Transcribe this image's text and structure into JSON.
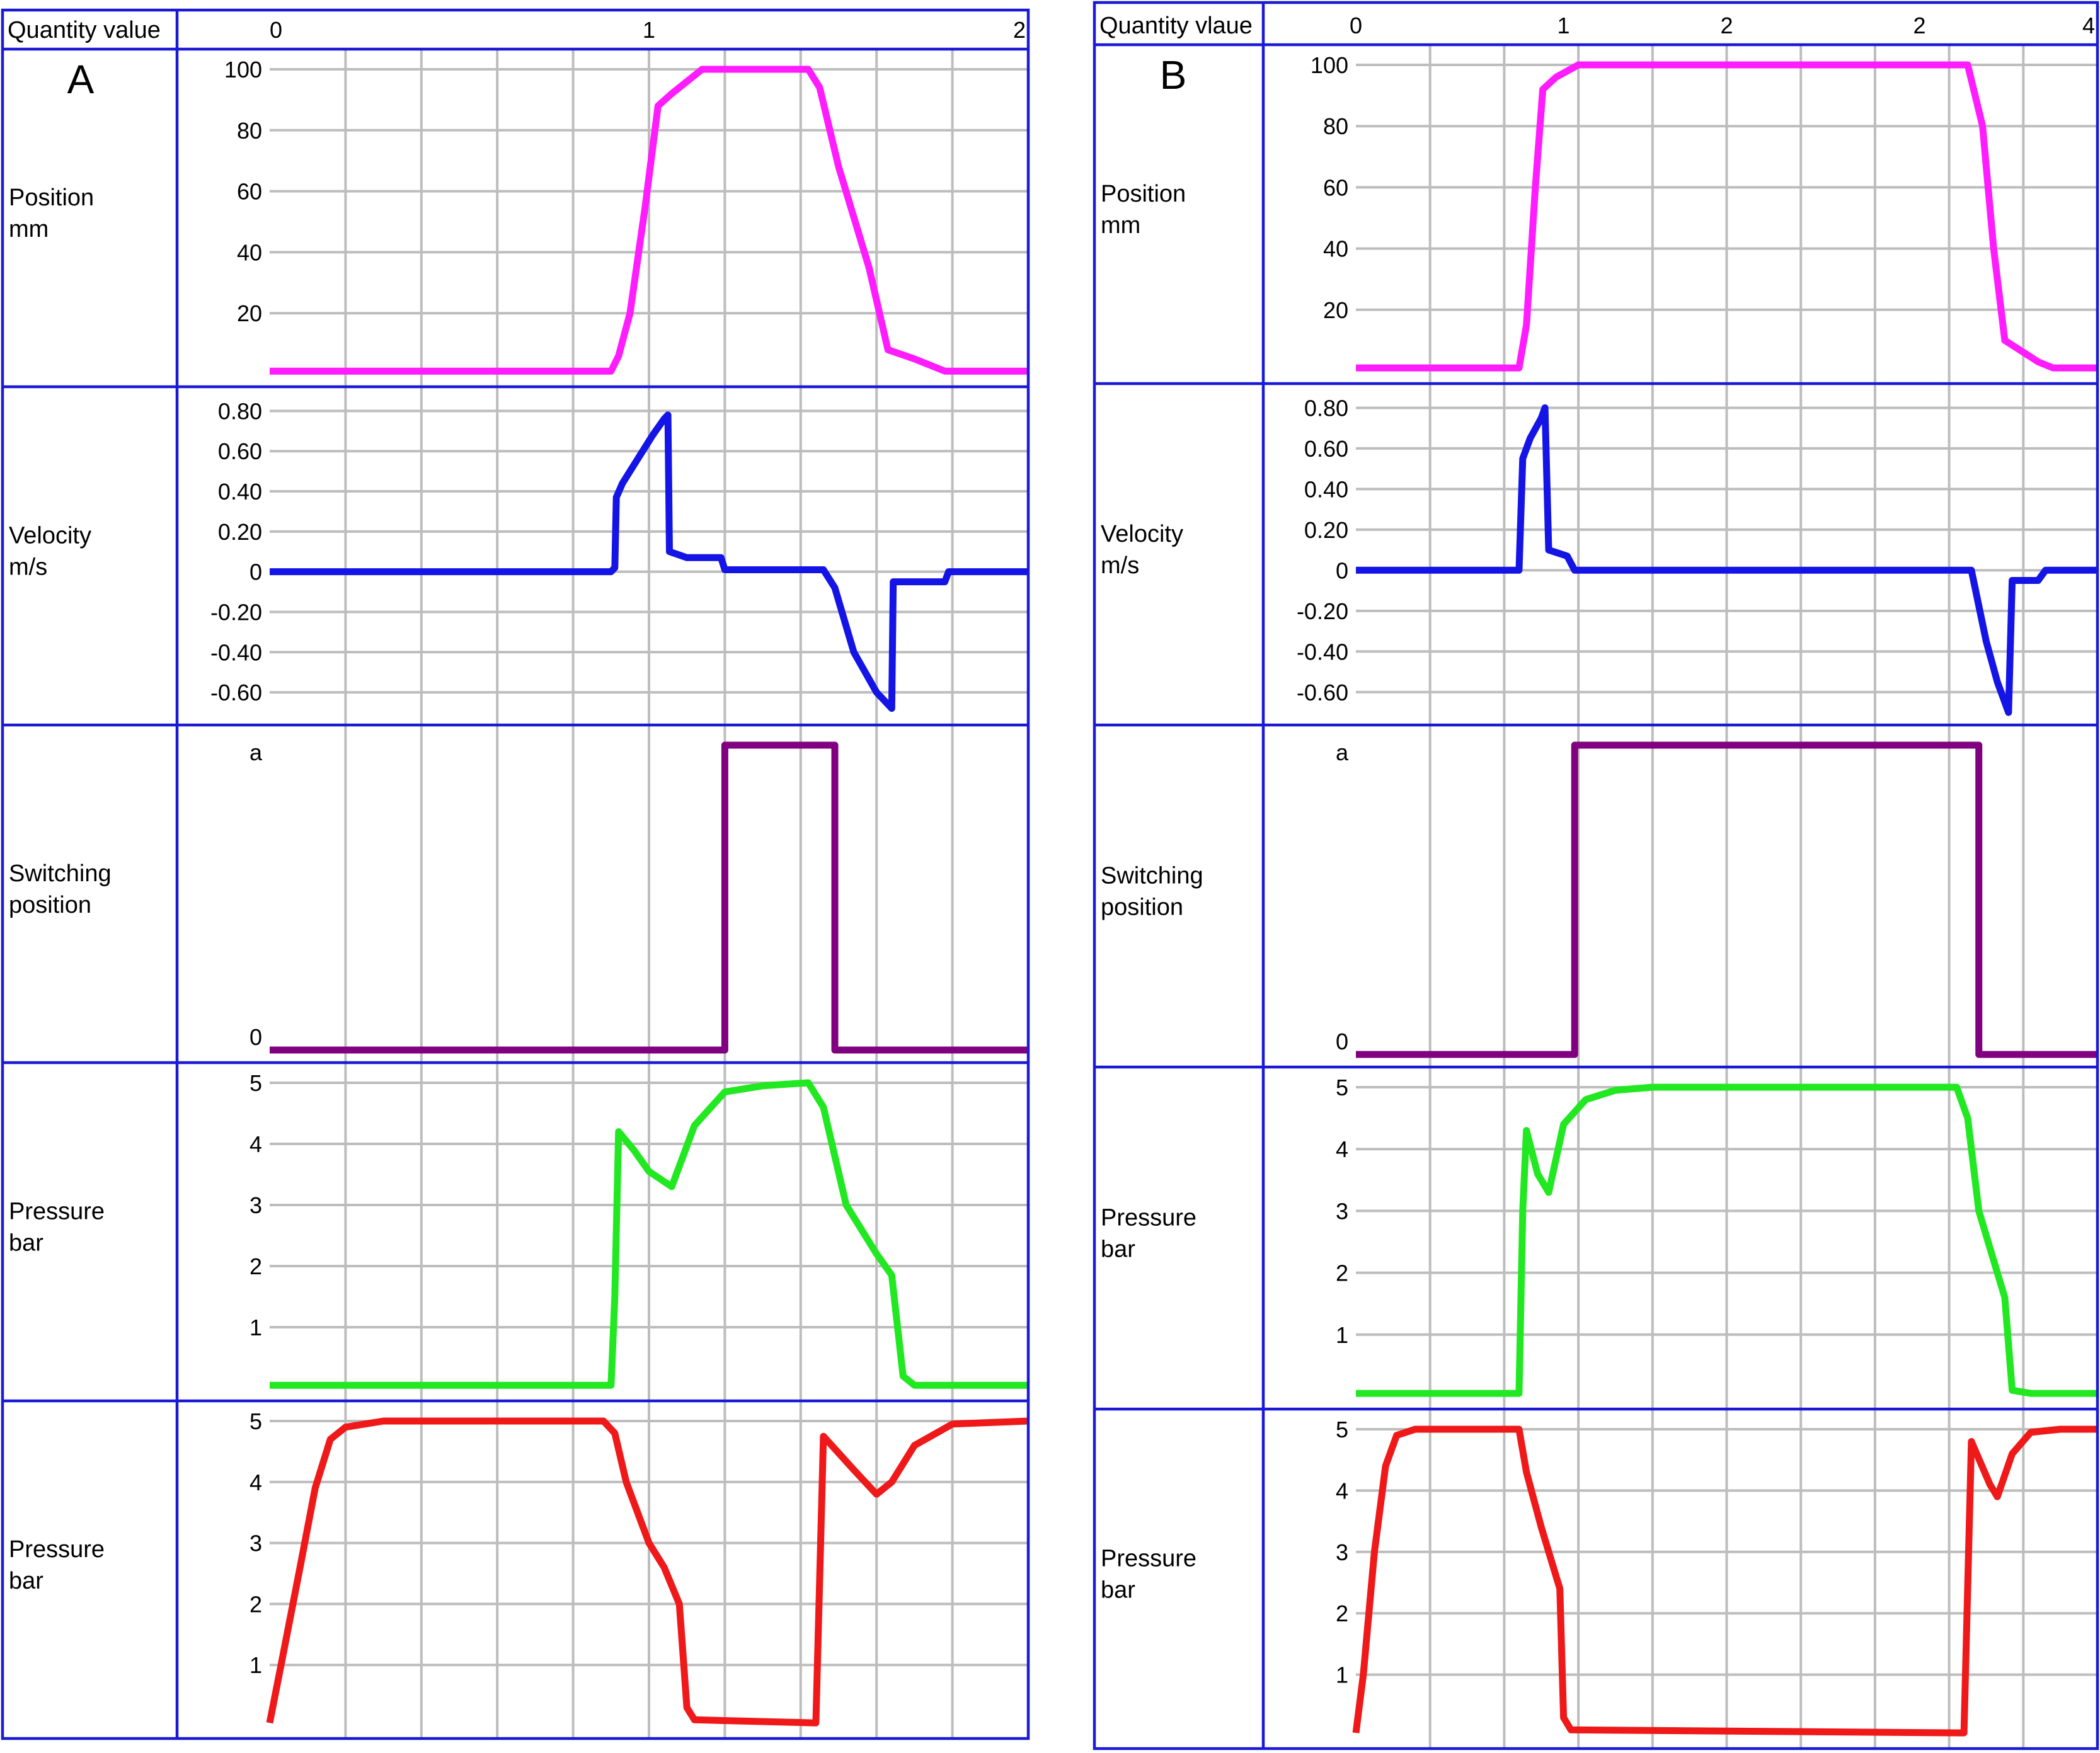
{
  "chart_data": [
    {
      "type": "line",
      "panel_letter": "A",
      "header_label": "Quantity value",
      "x_tick_labels": [
        "0",
        "1",
        "2"
      ],
      "xlim": [
        0,
        10
      ],
      "rows": [
        {
          "label_lines": [
            "Position",
            "mm"
          ],
          "color": "#ff1cff",
          "ylim": [
            0,
            100
          ],
          "y_ticks": [
            {
              "v": 20,
              "t": "20"
            },
            {
              "v": 40,
              "t": "40"
            },
            {
              "v": 60,
              "t": "60"
            },
            {
              "v": 80,
              "t": "80"
            },
            {
              "v": 100,
              "t": "100"
            }
          ],
          "points": [
            [
              0,
              1
            ],
            [
              4.5,
              1
            ],
            [
              4.6,
              6
            ],
            [
              4.75,
              20
            ],
            [
              4.95,
              55
            ],
            [
              5.12,
              88
            ],
            [
              5.3,
              92
            ],
            [
              5.5,
              96
            ],
            [
              5.7,
              100
            ],
            [
              7.1,
              100
            ],
            [
              7.25,
              94
            ],
            [
              7.5,
              68
            ],
            [
              7.9,
              35
            ],
            [
              8.15,
              8
            ],
            [
              8.5,
              5
            ],
            [
              8.9,
              1
            ],
            [
              10,
              1
            ]
          ]
        },
        {
          "label_lines": [
            "Velocity",
            "m/s"
          ],
          "color": "#1414e6",
          "ylim": [
            -0.7,
            0.82
          ],
          "y_ticks": [
            {
              "v": 0.8,
              "t": "0.80"
            },
            {
              "v": 0.6,
              "t": "0.60"
            },
            {
              "v": 0.4,
              "t": "0.40"
            },
            {
              "v": 0.2,
              "t": "0.20"
            },
            {
              "v": 0,
              "t": "0"
            },
            {
              "v": -0.2,
              "t": "-0.20"
            },
            {
              "v": -0.4,
              "t": "-0.40"
            },
            {
              "v": -0.6,
              "t": "-0.60"
            }
          ],
          "points": [
            [
              0,
              0
            ],
            [
              4.5,
              0
            ],
            [
              4.55,
              0.02
            ],
            [
              4.57,
              0.37
            ],
            [
              4.65,
              0.44
            ],
            [
              4.85,
              0.56
            ],
            [
              5.05,
              0.68
            ],
            [
              5.2,
              0.76
            ],
            [
              5.25,
              0.78
            ],
            [
              5.27,
              0.1
            ],
            [
              5.5,
              0.07
            ],
            [
              5.95,
              0.07
            ],
            [
              6.0,
              0.01
            ],
            [
              7.3,
              0.01
            ],
            [
              7.45,
              -0.08
            ],
            [
              7.7,
              -0.4
            ],
            [
              8.0,
              -0.6
            ],
            [
              8.2,
              -0.68
            ],
            [
              8.22,
              -0.05
            ],
            [
              8.5,
              -0.05
            ],
            [
              8.9,
              -0.05
            ],
            [
              8.95,
              0
            ],
            [
              10,
              0
            ]
          ]
        },
        {
          "label_lines": [
            "Switching",
            "position"
          ],
          "color": "#800080",
          "ylim": [
            0,
            1
          ],
          "y_ticks": [
            {
              "v": 0,
              "t": "0"
            },
            {
              "v": 1,
              "t": "a"
            }
          ],
          "points": [
            [
              0,
              0
            ],
            [
              6.0,
              0
            ],
            [
              6.0,
              1
            ],
            [
              7.45,
              1
            ],
            [
              7.45,
              0
            ],
            [
              10,
              0
            ]
          ]
        },
        {
          "label_lines": [
            "Pressure",
            "bar"
          ],
          "color": "#21e821",
          "ylim": [
            0,
            5
          ],
          "y_ticks": [
            {
              "v": 1,
              "t": "1"
            },
            {
              "v": 2,
              "t": "2"
            },
            {
              "v": 3,
              "t": "3"
            },
            {
              "v": 4,
              "t": "4"
            },
            {
              "v": 5,
              "t": "5"
            }
          ],
          "points": [
            [
              0,
              0.05
            ],
            [
              4.5,
              0.05
            ],
            [
              4.55,
              1.5
            ],
            [
              4.6,
              4.2
            ],
            [
              4.8,
              3.9
            ],
            [
              5.0,
              3.55
            ],
            [
              5.3,
              3.3
            ],
            [
              5.6,
              4.3
            ],
            [
              6.0,
              4.85
            ],
            [
              6.5,
              4.95
            ],
            [
              7.1,
              5.0
            ],
            [
              7.3,
              4.6
            ],
            [
              7.6,
              3.0
            ],
            [
              8.0,
              2.2
            ],
            [
              8.2,
              1.85
            ],
            [
              8.35,
              0.2
            ],
            [
              8.5,
              0.05
            ],
            [
              10,
              0.05
            ]
          ]
        },
        {
          "label_lines": [
            "Pressure",
            "bar"
          ],
          "color": "#ef1919",
          "ylim": [
            0,
            5
          ],
          "y_ticks": [
            {
              "v": 1,
              "t": "1"
            },
            {
              "v": 2,
              "t": "2"
            },
            {
              "v": 3,
              "t": "3"
            },
            {
              "v": 4,
              "t": "4"
            },
            {
              "v": 5,
              "t": "5"
            }
          ],
          "points": [
            [
              0,
              0.05
            ],
            [
              0.15,
              1.0
            ],
            [
              0.4,
              2.6
            ],
            [
              0.6,
              3.9
            ],
            [
              0.8,
              4.7
            ],
            [
              1.0,
              4.9
            ],
            [
              1.5,
              5.0
            ],
            [
              4.4,
              5.0
            ],
            [
              4.55,
              4.8
            ],
            [
              4.7,
              4.0
            ],
            [
              5.0,
              3.0
            ],
            [
              5.2,
              2.6
            ],
            [
              5.4,
              2.0
            ],
            [
              5.5,
              0.3
            ],
            [
              5.6,
              0.1
            ],
            [
              7.2,
              0.05
            ],
            [
              7.3,
              4.75
            ],
            [
              7.7,
              4.2
            ],
            [
              8.0,
              3.8
            ],
            [
              8.2,
              4.0
            ],
            [
              8.5,
              4.6
            ],
            [
              9.0,
              4.95
            ],
            [
              10,
              5.0
            ]
          ]
        }
      ]
    },
    {
      "type": "line",
      "panel_letter": "B",
      "header_label": "Quantity vlaue",
      "x_tick_labels": [
        "0",
        "1",
        "2",
        "2",
        "4"
      ],
      "xlim": [
        0,
        10
      ],
      "rows": [
        {
          "label_lines": [
            "Position",
            "mm"
          ],
          "color": "#ff1cff",
          "ylim": [
            0,
            100
          ],
          "y_ticks": [
            {
              "v": 20,
              "t": "20"
            },
            {
              "v": 40,
              "t": "40"
            },
            {
              "v": 60,
              "t": "60"
            },
            {
              "v": 80,
              "t": "80"
            },
            {
              "v": 100,
              "t": "100"
            }
          ],
          "points": [
            [
              0,
              1
            ],
            [
              2.2,
              1
            ],
            [
              2.3,
              15
            ],
            [
              2.42,
              60
            ],
            [
              2.52,
              92
            ],
            [
              2.7,
              96
            ],
            [
              3.0,
              100
            ],
            [
              8.25,
              100
            ],
            [
              8.45,
              80
            ],
            [
              8.6,
              40
            ],
            [
              8.75,
              10
            ],
            [
              9.2,
              3
            ],
            [
              9.4,
              1
            ],
            [
              10,
              1
            ]
          ]
        },
        {
          "label_lines": [
            "Velocity",
            "m/s"
          ],
          "color": "#1414e6",
          "ylim": [
            -0.7,
            0.82
          ],
          "y_ticks": [
            {
              "v": 0.8,
              "t": "0.80"
            },
            {
              "v": 0.6,
              "t": "0.60"
            },
            {
              "v": 0.4,
              "t": "0.40"
            },
            {
              "v": 0.2,
              "t": "0.20"
            },
            {
              "v": 0,
              "t": "0"
            },
            {
              "v": -0.2,
              "t": "-0.20"
            },
            {
              "v": -0.4,
              "t": "-0.40"
            },
            {
              "v": -0.6,
              "t": "-0.60"
            }
          ],
          "points": [
            [
              0,
              0
            ],
            [
              2.2,
              0
            ],
            [
              2.25,
              0.55
            ],
            [
              2.35,
              0.65
            ],
            [
              2.5,
              0.75
            ],
            [
              2.55,
              0.8
            ],
            [
              2.6,
              0.1
            ],
            [
              2.85,
              0.07
            ],
            [
              2.95,
              0
            ],
            [
              8.3,
              0
            ],
            [
              8.5,
              -0.35
            ],
            [
              8.65,
              -0.55
            ],
            [
              8.8,
              -0.7
            ],
            [
              8.85,
              -0.05
            ],
            [
              9.2,
              -0.05
            ],
            [
              9.3,
              0
            ],
            [
              10,
              0
            ]
          ]
        },
        {
          "label_lines": [
            "Switching",
            "position"
          ],
          "color": "#800080",
          "ylim": [
            0,
            1
          ],
          "y_ticks": [
            {
              "v": 0,
              "t": "0"
            },
            {
              "v": 1,
              "t": "a"
            }
          ],
          "points": [
            [
              0,
              0
            ],
            [
              2.95,
              0
            ],
            [
              2.95,
              1
            ],
            [
              8.4,
              1
            ],
            [
              8.4,
              0
            ],
            [
              10,
              0
            ]
          ]
        },
        {
          "label_lines": [
            "Pressure",
            "bar"
          ],
          "color": "#21e821",
          "ylim": [
            0,
            5
          ],
          "y_ticks": [
            {
              "v": 1,
              "t": "1"
            },
            {
              "v": 2,
              "t": "2"
            },
            {
              "v": 3,
              "t": "3"
            },
            {
              "v": 4,
              "t": "4"
            },
            {
              "v": 5,
              "t": "5"
            }
          ],
          "points": [
            [
              0,
              0.05
            ],
            [
              2.2,
              0.05
            ],
            [
              2.25,
              3.0
            ],
            [
              2.3,
              4.3
            ],
            [
              2.45,
              3.6
            ],
            [
              2.6,
              3.3
            ],
            [
              2.8,
              4.4
            ],
            [
              3.1,
              4.8
            ],
            [
              3.5,
              4.95
            ],
            [
              4.0,
              5.0
            ],
            [
              8.1,
              5.0
            ],
            [
              8.25,
              4.5
            ],
            [
              8.4,
              3.0
            ],
            [
              8.6,
              2.2
            ],
            [
              8.75,
              1.6
            ],
            [
              8.85,
              0.1
            ],
            [
              9.1,
              0.05
            ],
            [
              10,
              0.05
            ]
          ]
        },
        {
          "label_lines": [
            "Pressure",
            "bar"
          ],
          "color": "#ef1919",
          "ylim": [
            0,
            5
          ],
          "y_ticks": [
            {
              "v": 1,
              "t": "1"
            },
            {
              "v": 2,
              "t": "2"
            },
            {
              "v": 3,
              "t": "3"
            },
            {
              "v": 4,
              "t": "4"
            },
            {
              "v": 5,
              "t": "5"
            }
          ],
          "points": [
            [
              0,
              0.05
            ],
            [
              0.1,
              1.0
            ],
            [
              0.25,
              3.0
            ],
            [
              0.4,
              4.4
            ],
            [
              0.55,
              4.9
            ],
            [
              0.8,
              5.0
            ],
            [
              2.2,
              5.0
            ],
            [
              2.3,
              4.3
            ],
            [
              2.5,
              3.4
            ],
            [
              2.75,
              2.4
            ],
            [
              2.8,
              0.3
            ],
            [
              2.9,
              0.1
            ],
            [
              8.2,
              0.05
            ],
            [
              8.3,
              4.8
            ],
            [
              8.55,
              4.1
            ],
            [
              8.65,
              3.9
            ],
            [
              8.85,
              4.6
            ],
            [
              9.1,
              4.95
            ],
            [
              9.5,
              5.0
            ],
            [
              10,
              5.0
            ]
          ]
        }
      ]
    }
  ]
}
